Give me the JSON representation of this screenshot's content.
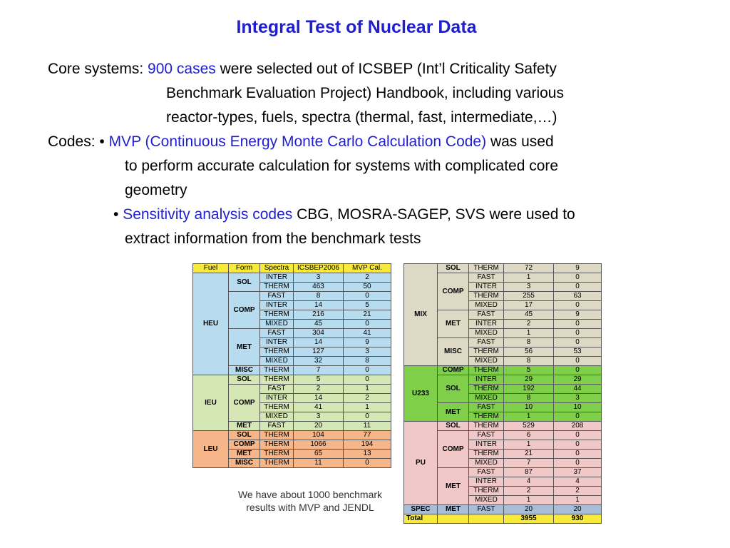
{
  "slide": {
    "title": "Integral Test of Nuclear Data",
    "core_label": "Core systems: ",
    "core_highlight": "900 cases",
    "core_line1_rest": " were selected out of ICSBEP (Int’l Criticality Safety",
    "core_line2": "Benchmark Evaluation Project) Handbook, including various",
    "core_line3": "reactor-types, fuels, spectra (thermal, fast, intermediate,…)",
    "codes_label": "Codes:  • ",
    "codes_highlight1": "MVP (Continuous Energy Monte Carlo Calculation Code)",
    "codes_line1_rest": " was used",
    "codes_line2": "to perform accurate calculation for systems with complicated core",
    "codes_line3": "geometry",
    "codes_bullet2": "• ",
    "codes_highlight2": "Sensitivity analysis codes",
    "codes_line4_rest": " CBG, MOSRA-SAGEP, SVS were used to",
    "codes_line5": "extract information from the benchmark tests",
    "note_line1": "We have about 1000 benchmark",
    "note_line2": "results with MVP and JENDL"
  },
  "left_table": {
    "headers": [
      "Fuel",
      "Form",
      "Spectra",
      "ICSBEP2006",
      "MVP Cal."
    ],
    "fuels": [
      "HEU",
      "IEU",
      "LEU"
    ],
    "forms": [
      "SOL",
      "COMP",
      "MET",
      "MISC",
      "SOL",
      "COMP",
      "MET",
      "SOL",
      "COMP",
      "MET",
      "MISC"
    ],
    "rows": [
      [
        "INTER",
        "3",
        "2"
      ],
      [
        "THERM",
        "463",
        "50"
      ],
      [
        "FAST",
        "8",
        "0"
      ],
      [
        "INTER",
        "14",
        "5"
      ],
      [
        "THERM",
        "216",
        "21"
      ],
      [
        "MIXED",
        "45",
        "0"
      ],
      [
        "FAST",
        "304",
        "41"
      ],
      [
        "INTER",
        "14",
        "9"
      ],
      [
        "THERM",
        "127",
        "3"
      ],
      [
        "MIXED",
        "32",
        "8"
      ],
      [
        "THERM",
        "7",
        "0"
      ],
      [
        "THERM",
        "5",
        "0"
      ],
      [
        "FAST",
        "2",
        "1"
      ],
      [
        "INTER",
        "14",
        "2"
      ],
      [
        "THERM",
        "41",
        "1"
      ],
      [
        "MIXED",
        "3",
        "0"
      ],
      [
        "FAST",
        "20",
        "11"
      ],
      [
        "THERM",
        "104",
        "77"
      ],
      [
        "THERM",
        "1066",
        "194"
      ],
      [
        "THERM",
        "65",
        "13"
      ],
      [
        "THERM",
        "11",
        "0"
      ]
    ]
  },
  "right_table": {
    "fuels": [
      "MIX",
      "U233",
      "PU",
      "SPEC",
      "Total"
    ],
    "forms": [
      "SOL",
      "COMP",
      "MET",
      "MISC",
      "COMP",
      "SOL",
      "MET",
      "SOL",
      "COMP",
      "MET",
      "MET"
    ],
    "rows": [
      [
        "THERM",
        "72",
        "9"
      ],
      [
        "FAST",
        "1",
        "0"
      ],
      [
        "INTER",
        "3",
        "0"
      ],
      [
        "THERM",
        "255",
        "63"
      ],
      [
        "MIXED",
        "17",
        "0"
      ],
      [
        "FAST",
        "45",
        "9"
      ],
      [
        "INTER",
        "2",
        "0"
      ],
      [
        "MIXED",
        "1",
        "0"
      ],
      [
        "FAST",
        "8",
        "0"
      ],
      [
        "THERM",
        "56",
        "53"
      ],
      [
        "MIXED",
        "8",
        "0"
      ],
      [
        "THERM",
        "5",
        "0"
      ],
      [
        "INTER",
        "29",
        "29"
      ],
      [
        "THERM",
        "192",
        "44"
      ],
      [
        "MIXED",
        "8",
        "3"
      ],
      [
        "FAST",
        "10",
        "10"
      ],
      [
        "THERM",
        "1",
        "0"
      ],
      [
        "THERM",
        "529",
        "208"
      ],
      [
        "FAST",
        "6",
        "0"
      ],
      [
        "INTER",
        "1",
        "0"
      ],
      [
        "THERM",
        "21",
        "0"
      ],
      [
        "MIXED",
        "7",
        "0"
      ],
      [
        "FAST",
        "87",
        "37"
      ],
      [
        "INTER",
        "4",
        "4"
      ],
      [
        "THERM",
        "2",
        "2"
      ],
      [
        "MIXED",
        "1",
        "1"
      ],
      [
        "FAST",
        "20",
        "20"
      ]
    ],
    "total": [
      "",
      "",
      "3955",
      "930"
    ]
  }
}
